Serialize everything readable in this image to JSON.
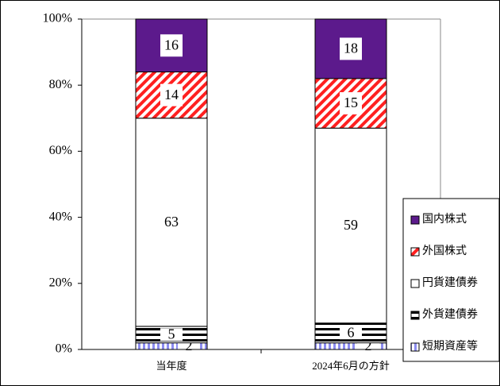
{
  "chart_data": {
    "type": "stacked-bar",
    "categories": [
      "当年度",
      "2024年6月の方針"
    ],
    "series": [
      {
        "name": "短期資産等",
        "color": "#8c8cf0",
        "pattern": "vertical-stripes",
        "values": [
          2,
          2
        ]
      },
      {
        "name": "外貨建債券",
        "color": "#000000",
        "pattern": "horizontal-stripes",
        "values": [
          5,
          6
        ]
      },
      {
        "name": "円貨建債券",
        "color": "#ffffff",
        "pattern": "solid",
        "values": [
          63,
          59
        ]
      },
      {
        "name": "外国株式",
        "color": "#ff2020",
        "pattern": "diagonal-stripes",
        "values": [
          14,
          15
        ]
      },
      {
        "name": "国内株式",
        "color": "#5c1a8c",
        "pattern": "solid",
        "values": [
          16,
          18
        ]
      }
    ],
    "ylim": [
      0,
      100
    ],
    "yticks": [
      {
        "value": 0,
        "label": "0%"
      },
      {
        "value": 20,
        "label": "20%"
      },
      {
        "value": 40,
        "label": "40%"
      },
      {
        "value": 60,
        "label": "60%"
      },
      {
        "value": 80,
        "label": "80%"
      },
      {
        "value": 100,
        "label": "100%"
      }
    ],
    "legend": "right-bottom"
  }
}
